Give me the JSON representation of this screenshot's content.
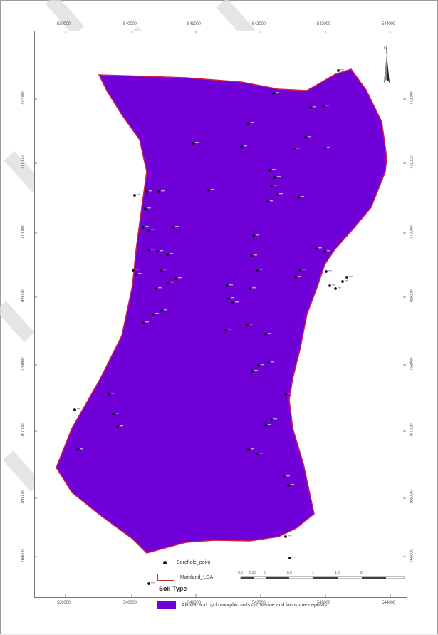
{
  "map": {
    "x_ticks": [
      "530000",
      "540000",
      "541000",
      "542000",
      "543000",
      "544000"
    ],
    "y_ticks": [
      "772000",
      "771000",
      "770000",
      "769000",
      "768000",
      "767000",
      "766000",
      "765000",
      "764000"
    ],
    "north_label": "N",
    "polygon_color": "#7000d8",
    "boundary_color": "#d0204a",
    "borehole_color": "#111111"
  },
  "legend": {
    "borehole_label": "Borehole_point",
    "lga_label": "Mainland_LGA",
    "soil_title": "Soil Type",
    "soil_label": "Alluvial and hydromorphic soils on riverine and lacustrine deposits"
  },
  "scale": {
    "labels": [
      "0.5",
      "0.25",
      "0",
      "0.5",
      "1",
      "1.5",
      "2"
    ]
  }
}
